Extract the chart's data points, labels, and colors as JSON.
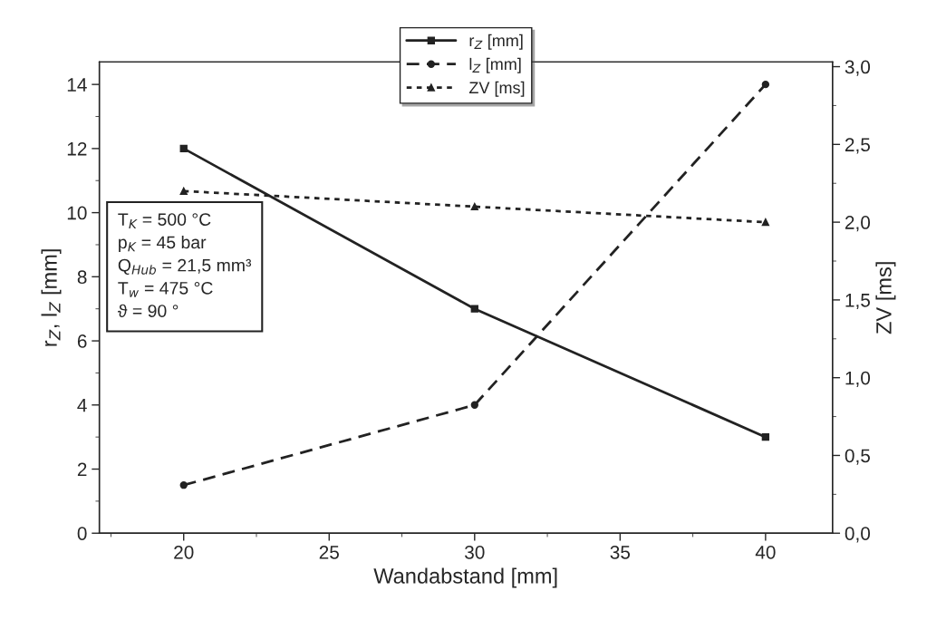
{
  "chart_data": {
    "type": "line",
    "xlabel": "Wandabstand [mm]",
    "ylabel": "r$_{Z}$, l$_{Z}$ [mm]",
    "y2label": "ZV [ms]",
    "x": [
      20,
      30,
      40
    ],
    "series": [
      {
        "name": "r$_{Z}$ [mm]",
        "color": "#222222",
        "values": [
          12,
          7,
          3
        ],
        "marker": "square",
        "line_style": "solid"
      },
      {
        "name": "l$_{Z}$ [mm]",
        "color": "#222222",
        "values": [
          1.5,
          4,
          14
        ],
        "marker": "circle",
        "line_style": "dashed"
      },
      {
        "name": "ZV [ms]",
        "color": "#222222",
        "values": [
          2.2,
          2.1,
          2.0
        ],
        "marker": "triangle",
        "line_style": "dotted",
        "axis": "y2"
      }
    ],
    "xlim": [
      17.1,
      42.3
    ],
    "xticks": [
      20,
      25,
      30,
      35,
      40
    ],
    "ylim": [
      0,
      14.7
    ],
    "yticks": [
      0,
      2,
      4,
      6,
      8,
      10,
      12,
      14
    ],
    "y2lim": [
      0,
      3.03
    ],
    "y2ticks": [
      {
        "value": 0,
        "label": "0,0"
      },
      {
        "value": 0.5,
        "label": "0,5"
      },
      {
        "value": 1.0,
        "label": "1,0"
      },
      {
        "value": 1.5,
        "label": "1,5"
      },
      {
        "value": 2.0,
        "label": "2,0"
      },
      {
        "value": 2.5,
        "label": "2,5"
      },
      {
        "value": 3.0,
        "label": "3,0"
      }
    ],
    "annotations": [
      "T$_{K}$ = 500 °C\np$_{K}$ = 45 bar\nQ$_{Hub}$ = 21,5 mm³\nT$_{w}$ = 475 °C\nϑ = 90 °"
    ],
    "legend": "top",
    "grid": false
  }
}
